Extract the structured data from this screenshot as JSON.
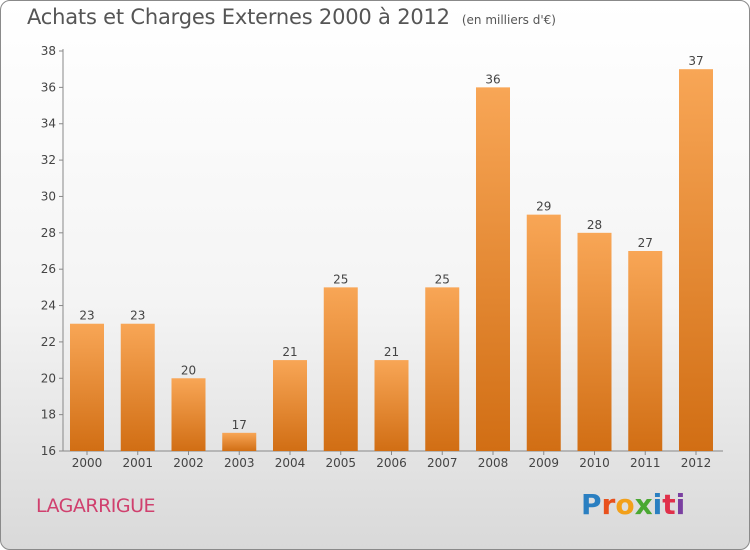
{
  "header": {
    "title": "Achats et Charges Externes 2000 à 2012",
    "unit_note": "(en milliers d'€)"
  },
  "commune_name": "LAGARRIGUE",
  "logo": {
    "text": "Proxiti",
    "letter_colors": [
      "#2a7fc1",
      "#e8501c",
      "#f2a01a",
      "#4aa832",
      "#2a7fc1",
      "#e0304a",
      "#7a3fa0"
    ]
  },
  "colors": {
    "bar_light": "#f8a656",
    "bar_dark": "#d16e14",
    "commune": "#d0406e"
  },
  "chart_data": {
    "type": "bar",
    "categories": [
      "2000",
      "2001",
      "2002",
      "2003",
      "2004",
      "2005",
      "2006",
      "2007",
      "2008",
      "2009",
      "2010",
      "2011",
      "2012"
    ],
    "values": [
      23,
      23,
      20,
      17,
      21,
      25,
      21,
      25,
      36,
      29,
      28,
      27,
      37
    ],
    "title": "Achats et Charges Externes 2000 à 2012",
    "ylim": [
      16,
      38
    ],
    "yticks": [
      16,
      18,
      20,
      22,
      24,
      26,
      28,
      30,
      32,
      34,
      36,
      38
    ],
    "grid": false,
    "data_labels": true
  }
}
